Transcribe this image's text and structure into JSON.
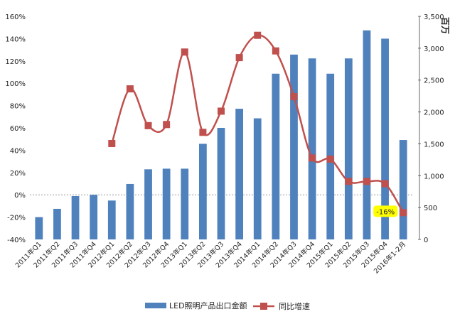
{
  "chart_data": {
    "type": "bar+line",
    "categories": [
      "2011年Q1",
      "2011年Q2",
      "2011年Q3",
      "2011年Q4",
      "2012年Q1",
      "2012年Q2",
      "2012年Q3",
      "2012年Q4",
      "2013年Q1",
      "2013年Q2",
      "2013年Q3",
      "2013年Q4",
      "2014年Q1",
      "2014年Q2",
      "2014年Q3",
      "2014年Q4",
      "2015年Q1",
      "2015年Q2",
      "2015年Q3",
      "2015年Q4",
      "2016年1-2月"
    ],
    "series": [
      {
        "name": "LED照明产品出口金额",
        "kind": "bar",
        "axis": "right",
        "color": "#4F81BD",
        "values": [
          350,
          480,
          680,
          700,
          610,
          870,
          1100,
          1110,
          1110,
          1500,
          1750,
          2050,
          1900,
          2600,
          2900,
          2840,
          2600,
          2840,
          3280,
          3150,
          1560
        ]
      },
      {
        "name": "同比增速",
        "kind": "line",
        "axis": "left",
        "color": "#C0504D",
        "values": [
          null,
          null,
          null,
          null,
          46,
          95,
          62,
          63,
          128,
          56,
          75,
          123,
          143,
          129,
          88,
          33,
          32,
          12,
          12,
          10,
          -16
        ]
      }
    ],
    "left_axis": {
      "min": -40,
      "max": 160,
      "step": 20,
      "ticks": [
        "-40%",
        "-20%",
        "0%",
        "20%",
        "40%",
        "60%",
        "80%",
        "100%",
        "120%",
        "140%",
        "160%"
      ]
    },
    "right_axis": {
      "min": 0,
      "max": 3500,
      "step": 500,
      "ticks": [
        "0",
        "500",
        "1,000",
        "1,500",
        "2,000",
        "2,500",
        "3,000",
        "3,500"
      ],
      "title": "百万"
    },
    "annotations": [
      {
        "category_index": 20,
        "text": "-16%",
        "color": "#FFFF00"
      }
    ],
    "legend_placement": "bottom",
    "grid": false
  }
}
